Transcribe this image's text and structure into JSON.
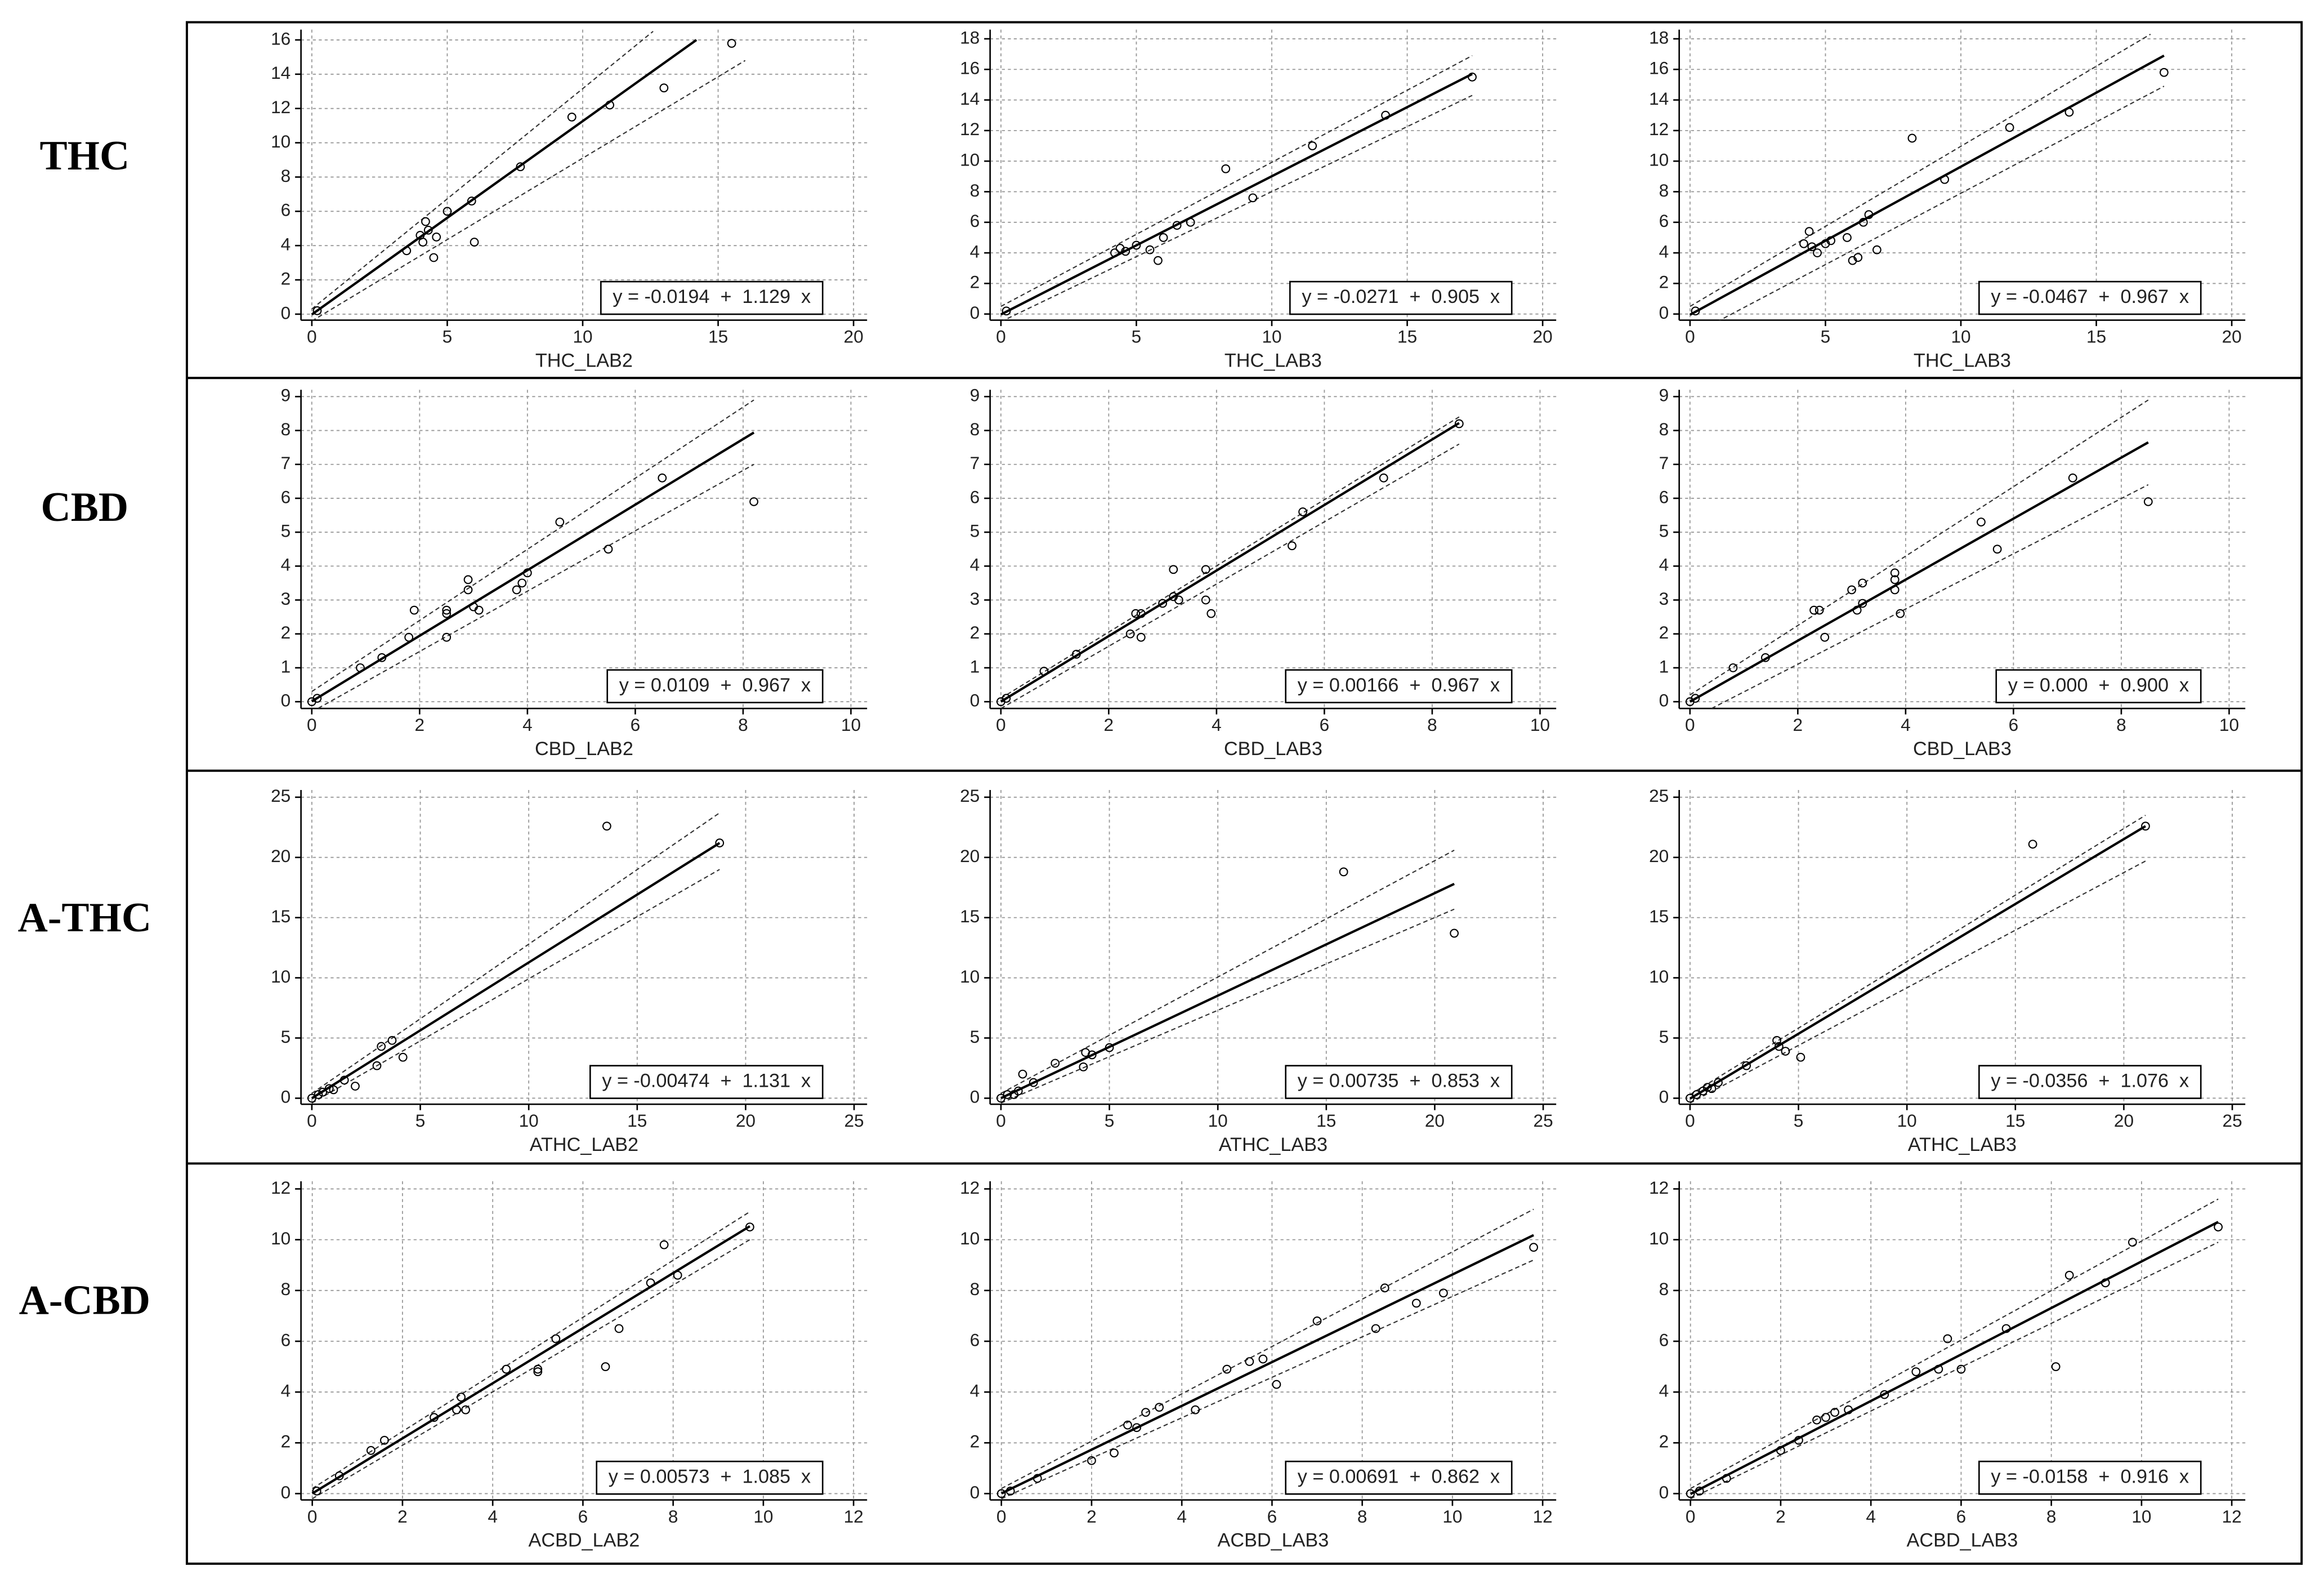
{
  "row_labels": [
    "THC",
    "CBD",
    "A-THC",
    "A-CBD"
  ],
  "chart_data": [
    {
      "type": "scatter",
      "x_label": "THC_LAB2",
      "equation": "y = -0.0194  +  1.129  x",
      "grid": true,
      "color": "#000000",
      "xlim": [
        -0.4,
        20.5
      ],
      "ylim": [
        -0.35,
        16.6
      ],
      "xticks": [
        0,
        5,
        10,
        15,
        20
      ],
      "yticks": [
        0,
        2,
        4,
        6,
        8,
        10,
        12,
        14,
        16
      ],
      "x": [
        0.2,
        3.5,
        4,
        4.1,
        4.2,
        4.3,
        4.5,
        4.6,
        5,
        5.9,
        6,
        7.7,
        9.6,
        11,
        13,
        15.5
      ],
      "y": [
        0.2,
        3.7,
        4.6,
        4.2,
        5.4,
        4.9,
        3.3,
        4.5,
        6,
        6.6,
        4.2,
        8.6,
        11.5,
        12.2,
        13.2,
        15.8
      ],
      "fit": {
        "x": [
          0,
          14.2
        ],
        "y": [
          -0.0194,
          16
        ]
      },
      "upper": {
        "x": [
          0,
          12.6
        ],
        "y": [
          0.3,
          16.5
        ]
      },
      "lower": {
        "x": [
          0,
          16
        ],
        "y": [
          -0.4,
          14.8
        ]
      }
    },
    {
      "type": "scatter",
      "x_label": "THC_LAB3",
      "equation": "y = -0.0271  +  0.905  x",
      "grid": true,
      "color": "#000000",
      "xlim": [
        -0.4,
        20.5
      ],
      "ylim": [
        -0.4,
        18.6
      ],
      "xticks": [
        0,
        5,
        10,
        15,
        20
      ],
      "yticks": [
        0,
        2,
        4,
        6,
        8,
        10,
        12,
        14,
        16,
        18
      ],
      "x": [
        0.2,
        4.2,
        4.4,
        4.6,
        5,
        5.5,
        5.8,
        6,
        6.5,
        7,
        8.3,
        9.3,
        11.5,
        14.2,
        17.4
      ],
      "y": [
        0.2,
        4,
        4.3,
        4.1,
        4.5,
        4.2,
        3.5,
        5,
        5.8,
        6,
        9.5,
        7.6,
        11,
        13,
        15.5
      ],
      "fit": {
        "x": [
          0,
          17.4
        ],
        "y": [
          -0.0271,
          15.7
        ]
      },
      "upper": {
        "x": [
          0,
          17.4
        ],
        "y": [
          0.5,
          16.9
        ]
      },
      "lower": {
        "x": [
          0,
          17.4
        ],
        "y": [
          -0.5,
          14.3
        ]
      }
    },
    {
      "type": "scatter",
      "x_label": "THC_LAB3",
      "equation": "y = -0.0467  +  0.967  x",
      "grid": true,
      "color": "#000000",
      "xlim": [
        -0.4,
        20.5
      ],
      "ylim": [
        -0.4,
        18.6
      ],
      "xticks": [
        0,
        5,
        10,
        15,
        20
      ],
      "yticks": [
        0,
        2,
        4,
        6,
        8,
        10,
        12,
        14,
        16,
        18
      ],
      "x": [
        0.2,
        4.2,
        4.4,
        4.5,
        4.7,
        5,
        5.2,
        5.8,
        6,
        6.2,
        6.4,
        6.6,
        6.9,
        8.2,
        9.4,
        11.8,
        14,
        17.5
      ],
      "y": [
        0.2,
        4.6,
        5.4,
        4.4,
        4,
        4.6,
        4.8,
        5,
        3.5,
        3.7,
        6,
        6.5,
        4.2,
        11.5,
        8.8,
        12.2,
        13.2,
        15.8
      ],
      "fit": {
        "x": [
          0,
          17.5
        ],
        "y": [
          -0.0467,
          16.9
        ]
      },
      "upper": {
        "x": [
          0,
          17
        ],
        "y": [
          0.5,
          18.3
        ]
      },
      "lower": {
        "x": [
          1,
          17.5
        ],
        "y": [
          -0.5,
          14.9
        ]
      }
    },
    {
      "type": "scatter",
      "x_label": "CBD_LAB2",
      "equation": "y = 0.0109  +  0.967  x",
      "grid": true,
      "color": "#000000",
      "xlim": [
        -0.2,
        10.3
      ],
      "ylim": [
        -0.2,
        9.2
      ],
      "xticks": [
        0,
        2,
        4,
        6,
        8,
        10
      ],
      "yticks": [
        0,
        1,
        2,
        3,
        4,
        5,
        6,
        7,
        8,
        9
      ],
      "x": [
        0,
        0.1,
        0.9,
        1.3,
        1.8,
        1.9,
        2.5,
        2.5,
        2.5,
        2.9,
        2.9,
        3,
        3.1,
        3.8,
        3.9,
        4,
        4.6,
        5.5,
        6.5,
        8.2
      ],
      "y": [
        0,
        0.1,
        1,
        1.3,
        1.9,
        2.7,
        2.6,
        1.9,
        2.7,
        3.3,
        3.6,
        2.8,
        2.7,
        3.3,
        3.5,
        3.8,
        5.3,
        4.5,
        6.6,
        5.9
      ],
      "fit": {
        "x": [
          0,
          8.2
        ],
        "y": [
          0.0109,
          7.94
        ]
      },
      "upper": {
        "x": [
          0,
          8.2
        ],
        "y": [
          0.3,
          8.9
        ]
      },
      "lower": {
        "x": [
          0,
          8.2
        ],
        "y": [
          -0.3,
          7
        ]
      }
    },
    {
      "type": "scatter",
      "x_label": "CBD_LAB3",
      "equation": "y = 0.00166  +  0.967  x",
      "grid": true,
      "color": "#000000",
      "xlim": [
        -0.2,
        10.3
      ],
      "ylim": [
        -0.2,
        9.2
      ],
      "xticks": [
        0,
        2,
        4,
        6,
        8,
        10
      ],
      "yticks": [
        0,
        1,
        2,
        3,
        4,
        5,
        6,
        7,
        8,
        9
      ],
      "x": [
        0,
        0.1,
        0.8,
        1.4,
        2.4,
        2.5,
        2.6,
        2.6,
        3,
        3.2,
        3.2,
        3.3,
        3.8,
        3.8,
        3.9,
        5.4,
        5.6,
        7.1,
        8.5
      ],
      "y": [
        0,
        0.1,
        0.9,
        1.4,
        2,
        2.6,
        1.9,
        2.6,
        2.9,
        3.1,
        3.9,
        3,
        3,
        3.9,
        2.6,
        4.6,
        5.6,
        6.6,
        8.2
      ],
      "fit": {
        "x": [
          0,
          8.5
        ],
        "y": [
          0.00166,
          8.22
        ]
      },
      "upper": {
        "x": [
          0,
          8.5
        ],
        "y": [
          0.1,
          8.4
        ]
      },
      "lower": {
        "x": [
          0,
          8.5
        ],
        "y": [
          -0.2,
          7.6
        ]
      }
    },
    {
      "type": "scatter",
      "x_label": "CBD_LAB3",
      "equation": "y = 0.000  +  0.900  x",
      "grid": true,
      "color": "#000000",
      "xlim": [
        -0.2,
        10.3
      ],
      "ylim": [
        -0.2,
        9.2
      ],
      "xticks": [
        0,
        2,
        4,
        6,
        8,
        10
      ],
      "yticks": [
        0,
        1,
        2,
        3,
        4,
        5,
        6,
        7,
        8,
        9
      ],
      "x": [
        0,
        0.1,
        0.8,
        1.4,
        2.3,
        2.4,
        2.5,
        3,
        3.1,
        3.2,
        3.2,
        3.8,
        3.8,
        3.8,
        3.9,
        5.4,
        5.7,
        7.1,
        8.5
      ],
      "y": [
        0,
        0.1,
        1,
        1.3,
        2.7,
        2.7,
        1.9,
        3.3,
        2.7,
        2.9,
        3.5,
        3.3,
        3.6,
        3.8,
        2.6,
        5.3,
        4.5,
        6.6,
        5.9
      ],
      "fit": {
        "x": [
          0,
          8.5
        ],
        "y": [
          0,
          7.65
        ]
      },
      "upper": {
        "x": [
          0,
          8.5
        ],
        "y": [
          0.2,
          8.9
        ]
      },
      "lower": {
        "x": [
          0.4,
          8.5
        ],
        "y": [
          -0.2,
          6.4
        ]
      }
    },
    {
      "type": "scatter",
      "x_label": "ATHC_LAB2",
      "equation": "y = -0.00474  +  1.131  x",
      "grid": true,
      "color": "#000000",
      "xlim": [
        -0.5,
        25.6
      ],
      "ylim": [
        -0.5,
        25.6
      ],
      "xticks": [
        0,
        5,
        10,
        15,
        20,
        25
      ],
      "yticks": [
        0,
        5,
        10,
        15,
        20,
        25
      ],
      "x": [
        0,
        0.3,
        0.5,
        0.8,
        1,
        1.5,
        2,
        3,
        3.2,
        3.7,
        4.2,
        13.6,
        18.8
      ],
      "y": [
        0,
        0.3,
        0.5,
        0.8,
        0.7,
        1.5,
        1,
        2.7,
        4.3,
        4.8,
        3.4,
        22.6,
        21.2
      ],
      "fit": {
        "x": [
          0,
          18.8
        ],
        "y": [
          -0.00474,
          21.2
        ]
      },
      "upper": {
        "x": [
          0,
          18.8
        ],
        "y": [
          0.4,
          23.7
        ]
      },
      "lower": {
        "x": [
          0,
          18.8
        ],
        "y": [
          -0.4,
          19
        ]
      }
    },
    {
      "type": "scatter",
      "x_label": "ATHC_LAB3",
      "equation": "y = 0.00735  +  0.853  x",
      "grid": true,
      "color": "#000000",
      "xlim": [
        -0.5,
        25.6
      ],
      "ylim": [
        -0.5,
        25.6
      ],
      "xticks": [
        0,
        5,
        10,
        15,
        20,
        25
      ],
      "yticks": [
        0,
        5,
        10,
        15,
        20,
        25
      ],
      "x": [
        0,
        0.3,
        0.6,
        0.8,
        1,
        1.5,
        2.5,
        3.8,
        3.9,
        4.2,
        5,
        15.8,
        20.9
      ],
      "y": [
        0,
        0.3,
        0.3,
        0.6,
        2,
        1.3,
        2.9,
        2.6,
        3.8,
        3.6,
        4.2,
        18.8,
        13.7
      ],
      "fit": {
        "x": [
          0,
          20.9
        ],
        "y": [
          0.00735,
          17.8
        ]
      },
      "upper": {
        "x": [
          0,
          20.9
        ],
        "y": [
          0.4,
          20.6
        ]
      },
      "lower": {
        "x": [
          0,
          20.9
        ],
        "y": [
          -0.4,
          15.7
        ]
      }
    },
    {
      "type": "scatter",
      "x_label": "ATHC_LAB3",
      "equation": "y = -0.0356  +  1.076  x",
      "grid": true,
      "color": "#000000",
      "xlim": [
        -0.5,
        25.6
      ],
      "ylim": [
        -0.5,
        25.6
      ],
      "xticks": [
        0,
        5,
        10,
        15,
        20,
        25
      ],
      "yticks": [
        0,
        5,
        10,
        15,
        20,
        25
      ],
      "x": [
        0,
        0.3,
        0.6,
        0.8,
        1,
        1.3,
        2.6,
        4,
        4.1,
        4.4,
        5.1,
        15.8,
        21
      ],
      "y": [
        0,
        0.3,
        0.6,
        0.9,
        0.8,
        1.3,
        2.7,
        4.8,
        4.3,
        3.9,
        3.4,
        21.1,
        22.6
      ],
      "fit": {
        "x": [
          0,
          21
        ],
        "y": [
          -0.0356,
          22.6
        ]
      },
      "upper": {
        "x": [
          0,
          21
        ],
        "y": [
          0.3,
          23.5
        ]
      },
      "lower": {
        "x": [
          0,
          21
        ],
        "y": [
          -0.4,
          19.7
        ]
      }
    },
    {
      "type": "scatter",
      "x_label": "ACBD_LAB2",
      "equation": "y = 0.00573  +  1.085  x",
      "grid": true,
      "color": "#000000",
      "xlim": [
        -0.25,
        12.3
      ],
      "ylim": [
        -0.25,
        12.3
      ],
      "xticks": [
        0,
        2,
        4,
        6,
        8,
        10,
        12
      ],
      "yticks": [
        0,
        2,
        4,
        6,
        8,
        10,
        12
      ],
      "x": [
        0.1,
        0.6,
        1.3,
        1.6,
        2.7,
        3.2,
        3.3,
        3.4,
        4.3,
        5,
        5,
        5.4,
        6.5,
        6.8,
        7.5,
        7.8,
        8.1,
        9.7
      ],
      "y": [
        0.1,
        0.7,
        1.7,
        2.1,
        3,
        3.3,
        3.8,
        3.3,
        4.9,
        4.8,
        4.9,
        6.1,
        5,
        6.5,
        8.3,
        9.8,
        8.6,
        10.5
      ],
      "fit": {
        "x": [
          0,
          9.7
        ],
        "y": [
          0.00573,
          10.53
        ]
      },
      "upper": {
        "x": [
          0,
          9.7
        ],
        "y": [
          0.2,
          11.1
        ]
      },
      "lower": {
        "x": [
          0,
          9.7
        ],
        "y": [
          -0.2,
          10
        ]
      }
    },
    {
      "type": "scatter",
      "x_label": "ACBD_LAB3",
      "equation": "y = 0.00691  +  0.862  x",
      "grid": true,
      "color": "#000000",
      "xlim": [
        -0.25,
        12.3
      ],
      "ylim": [
        -0.25,
        12.3
      ],
      "xticks": [
        0,
        2,
        4,
        6,
        8,
        10,
        12
      ],
      "yticks": [
        0,
        2,
        4,
        6,
        8,
        10,
        12
      ],
      "x": [
        0,
        0.2,
        0.8,
        2,
        2.5,
        2.8,
        3,
        3.2,
        3.5,
        4.3,
        5,
        5.5,
        5.8,
        6.1,
        7,
        8.3,
        8.5,
        9.2,
        9.8,
        11.8
      ],
      "y": [
        0,
        0.1,
        0.6,
        1.3,
        1.6,
        2.7,
        2.6,
        3.2,
        3.4,
        3.3,
        4.9,
        5.2,
        5.3,
        4.3,
        6.8,
        6.5,
        8.1,
        7.5,
        7.9,
        9.7
      ],
      "fit": {
        "x": [
          0,
          11.8
        ],
        "y": [
          0.00691,
          10.18
        ]
      },
      "upper": {
        "x": [
          0,
          11.8
        ],
        "y": [
          0.2,
          11.2
        ]
      },
      "lower": {
        "x": [
          0,
          11.8
        ],
        "y": [
          -0.2,
          9.2
        ]
      }
    },
    {
      "type": "scatter",
      "x_label": "ACBD_LAB3",
      "equation": "y = -0.0158  +  0.916  x",
      "grid": true,
      "color": "#000000",
      "xlim": [
        -0.25,
        12.3
      ],
      "ylim": [
        -0.25,
        12.3
      ],
      "xticks": [
        0,
        2,
        4,
        6,
        8,
        10,
        12
      ],
      "yticks": [
        0,
        2,
        4,
        6,
        8,
        10,
        12
      ],
      "x": [
        0,
        0.2,
        0.8,
        2,
        2.4,
        2.8,
        3,
        3.2,
        3.5,
        4.3,
        5,
        5.5,
        5.7,
        6,
        7,
        8.1,
        8.4,
        9.2,
        9.8,
        11.7
      ],
      "y": [
        0,
        0.1,
        0.6,
        1.7,
        2.1,
        2.9,
        3,
        3.2,
        3.3,
        3.9,
        4.8,
        4.9,
        6.1,
        4.9,
        6.5,
        5,
        8.6,
        8.3,
        9.9,
        10.5
      ],
      "fit": {
        "x": [
          0,
          11.7
        ],
        "y": [
          -0.0158,
          10.7
        ]
      },
      "upper": {
        "x": [
          0,
          11.7
        ],
        "y": [
          0.2,
          11.6
        ]
      },
      "lower": {
        "x": [
          0,
          11.7
        ],
        "y": [
          -0.2,
          9.9
        ]
      }
    }
  ]
}
